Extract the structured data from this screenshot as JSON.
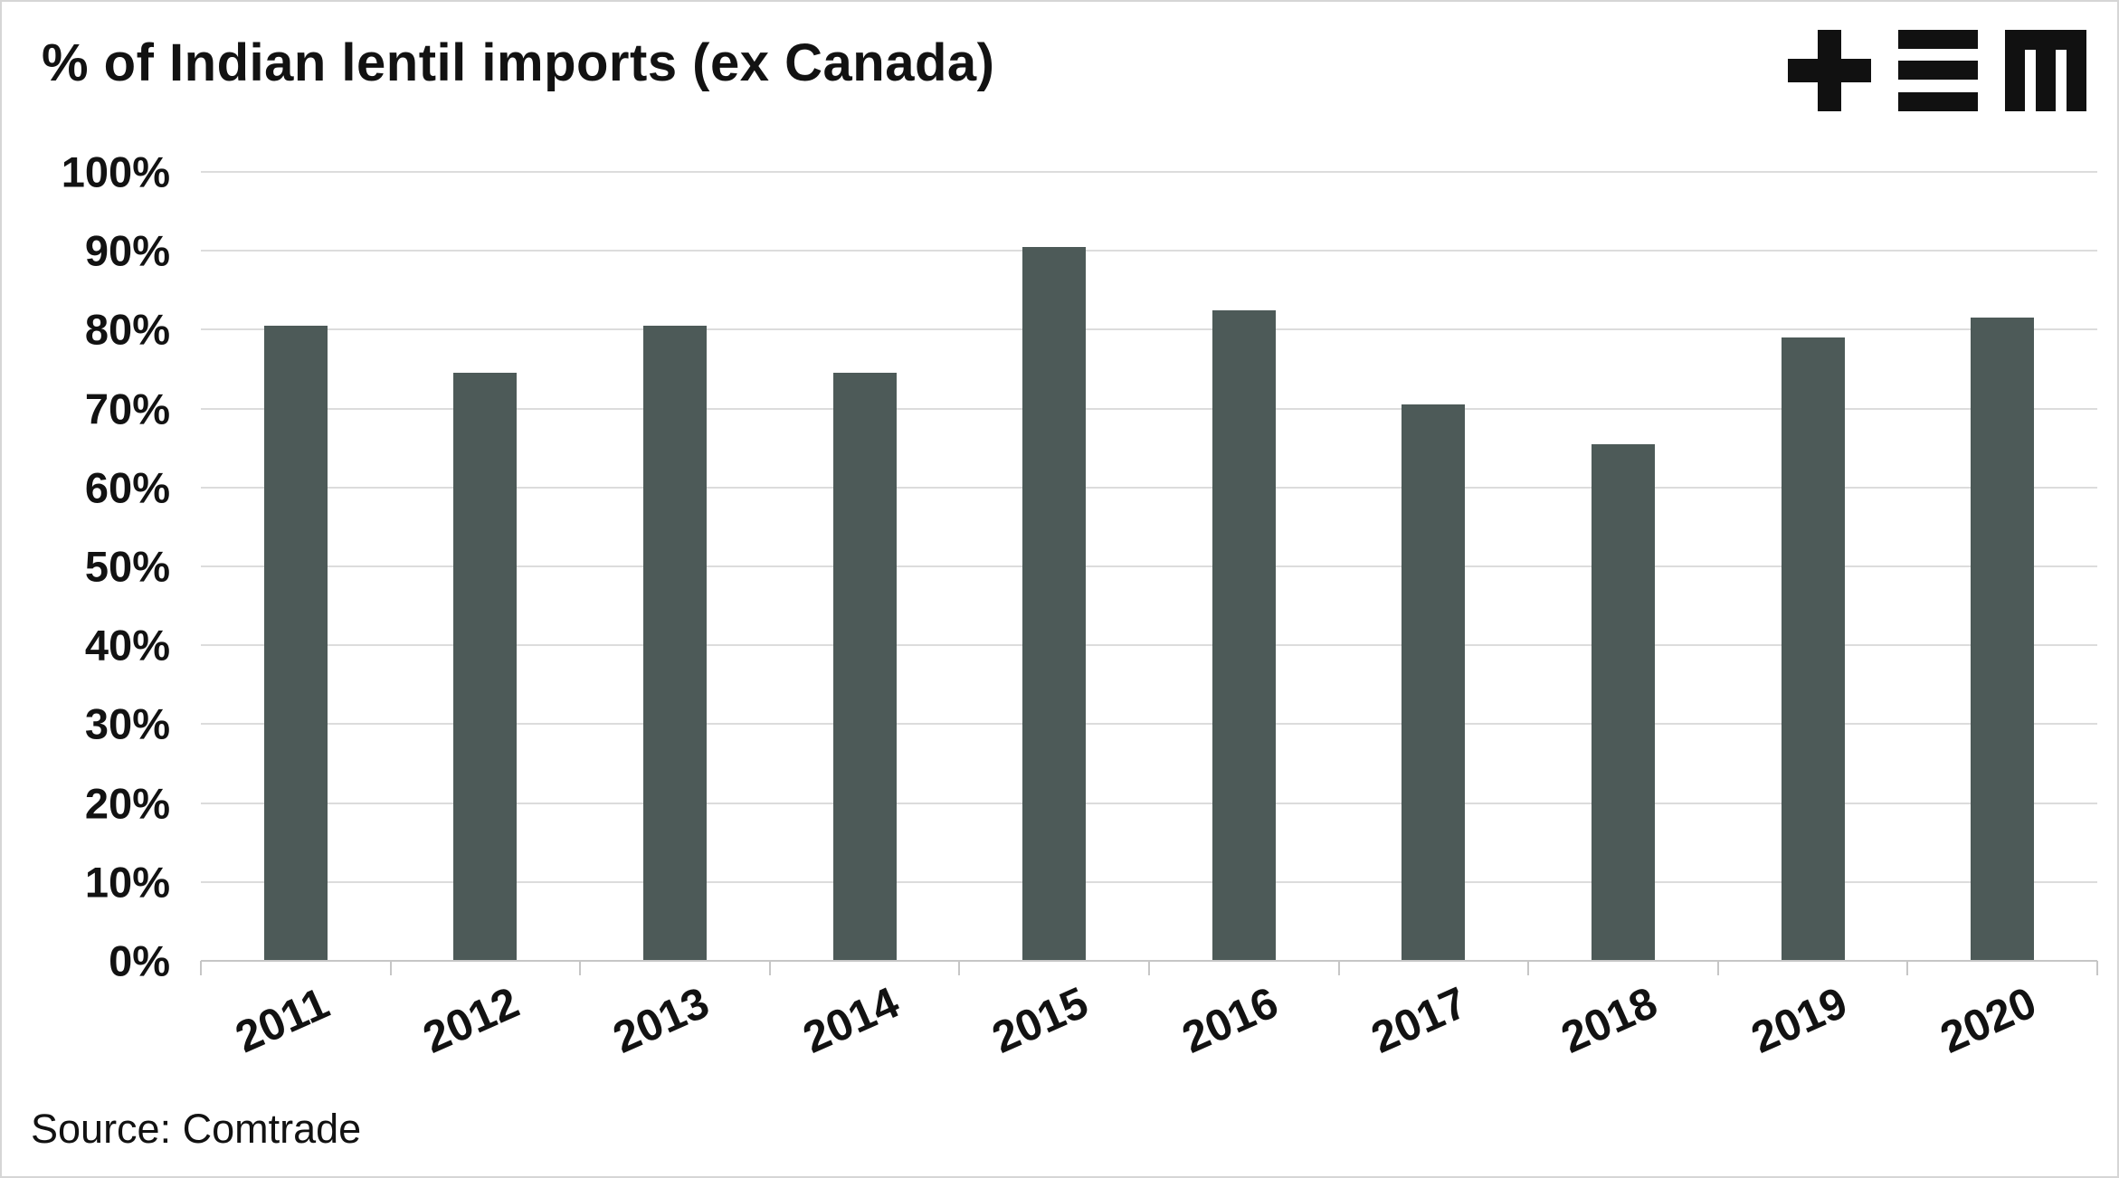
{
  "chart_data": {
    "type": "bar",
    "title": "% of Indian lentil imports (ex Canada)",
    "categories": [
      "2011",
      "2012",
      "2013",
      "2014",
      "2015",
      "2016",
      "2017",
      "2018",
      "2019",
      "2020"
    ],
    "values": [
      80.5,
      74.5,
      80.5,
      74.5,
      90.5,
      82.5,
      70.5,
      65.5,
      79,
      81.5
    ],
    "xlabel": "",
    "ylabel": "",
    "ylim": [
      0,
      100
    ],
    "ytick_step": 10,
    "ytick_suffix": "%",
    "grid": true,
    "legend": "none",
    "bar_color": "#4d5a58",
    "gridline_color": "#dcdcdc",
    "axis_color": "#c6c6c6",
    "text_color": "#121212"
  },
  "source": "Source: Comtrade",
  "logo": {
    "name": "tem-logo",
    "color": "#111111"
  }
}
